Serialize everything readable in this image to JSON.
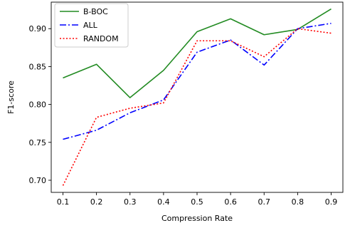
{
  "chart_data": {
    "type": "line",
    "title": "",
    "xlabel": "Compression Rate",
    "ylabel": "F1-score",
    "x": [
      0.1,
      0.2,
      0.3,
      0.4,
      0.5,
      0.6,
      0.7,
      0.8,
      0.9
    ],
    "xlim": [
      0.065,
      0.935
    ],
    "ylim": [
      0.684,
      0.935
    ],
    "xticks": [
      "0.1",
      "0.2",
      "0.3",
      "0.4",
      "0.5",
      "0.6",
      "0.7",
      "0.8",
      "0.9"
    ],
    "xtick_values": [
      0.1,
      0.2,
      0.3,
      0.4,
      0.5,
      0.6,
      0.7,
      0.8,
      0.9
    ],
    "yticks": [
      "0.70",
      "0.75",
      "0.80",
      "0.85",
      "0.90"
    ],
    "ytick_values": [
      0.7,
      0.75,
      0.8,
      0.85,
      0.9
    ],
    "grid": false,
    "legend_position": "top-left",
    "series": [
      {
        "name": "B-BOC",
        "color": "#228B22",
        "dash": "solid",
        "values": [
          0.835,
          0.853,
          0.809,
          0.845,
          0.896,
          0.913,
          0.892,
          0.899,
          0.926
        ]
      },
      {
        "name": "ALL",
        "color": "#0000FF",
        "dash": "dashdot",
        "values": [
          0.754,
          0.766,
          0.789,
          0.806,
          0.869,
          0.885,
          0.852,
          0.9,
          0.907
        ]
      },
      {
        "name": "RANDOM",
        "color": "#FF0000",
        "dash": "dotted",
        "values": [
          0.693,
          0.783,
          0.795,
          0.802,
          0.884,
          0.884,
          0.863,
          0.9,
          0.894
        ]
      }
    ]
  }
}
